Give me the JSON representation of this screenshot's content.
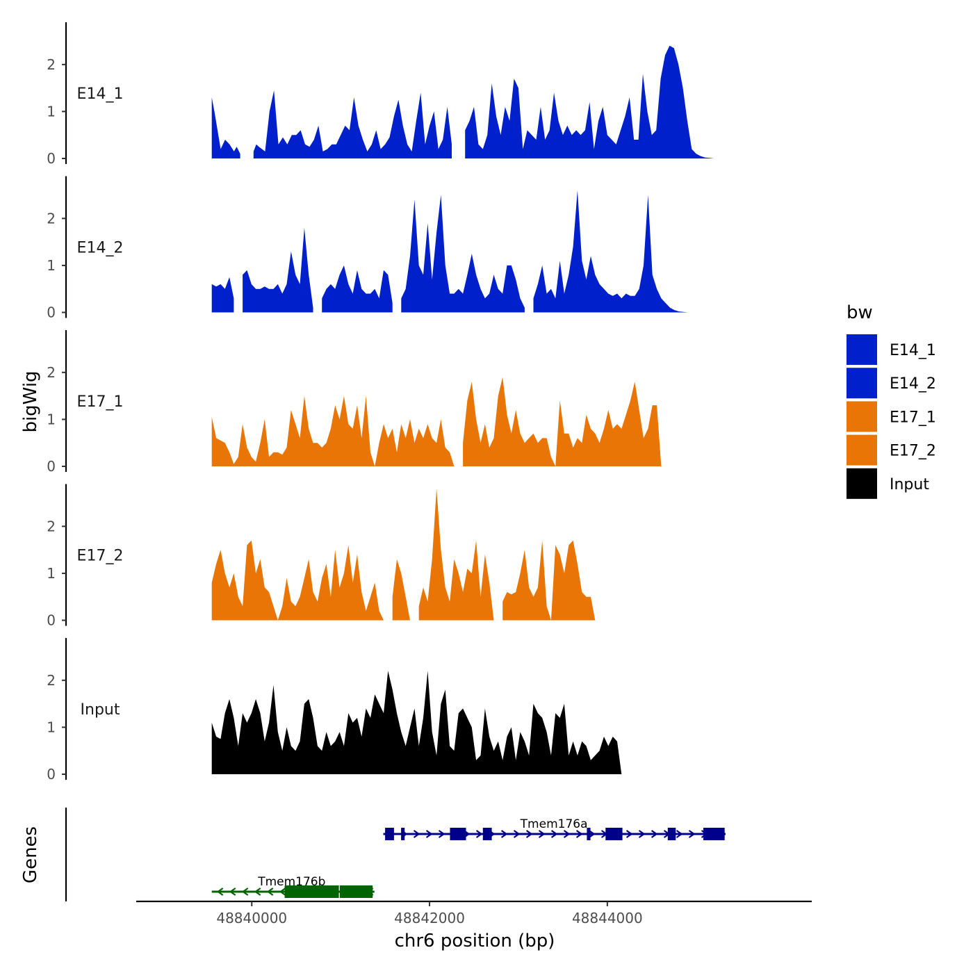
{
  "chart_data": {
    "type": "area",
    "ylabel": "bigWig",
    "xlabel": "chr6 position (bp)",
    "xlim": [
      48838700,
      48846300
    ],
    "x_ticks": [
      48840000,
      48842000,
      48844000
    ],
    "x_tick_labels": [
      "48840000",
      "48842000",
      "48844000"
    ],
    "ylim": [
      0,
      2.9
    ],
    "y_ticks": [
      0,
      1,
      2
    ],
    "y_tick_labels": [
      "0",
      "1",
      "2"
    ],
    "legend": {
      "title": "bw",
      "position": "right",
      "items": [
        {
          "label": "E14_1",
          "color": "#0020cc"
        },
        {
          "label": "E14_2",
          "color": "#0020cc"
        },
        {
          "label": "E17_1",
          "color": "#e87506"
        },
        {
          "label": "E17_2",
          "color": "#e87506"
        },
        {
          "label": "Input",
          "color": "#000000"
        }
      ]
    },
    "tracks": [
      {
        "name": "E14_1",
        "color": "#0020cc",
        "x": [
          48839550,
          48839580,
          48839650,
          48839700,
          48839750,
          48839800,
          48839830,
          48839870,
          48839920,
          48839970,
          48840020,
          48840050,
          48840080,
          48840150,
          48840200,
          48840250,
          48840300,
          48840350,
          48840400,
          48840450,
          48840500,
          48840550,
          48840600,
          48840650,
          48840700,
          48840750,
          48840800,
          48840850,
          48840900,
          48840950,
          48841000,
          48841050,
          48841100,
          48841150,
          48841200,
          48841250,
          48841300,
          48841350,
          48841400,
          48841450,
          48841500,
          48841550,
          48841600,
          48841650,
          48841700,
          48841750,
          48841800,
          48841850,
          48841900,
          48841950,
          48842000,
          48842050,
          48842100,
          48842150,
          48842200,
          48842250,
          48842300,
          48842350,
          48842400,
          48842450,
          48842500,
          48842550,
          48842600,
          48842650,
          48842700,
          48842750,
          48842800,
          48842850,
          48842900,
          48842950,
          48843000,
          48843050,
          48843100,
          48843150,
          48843200,
          48843250,
          48843300,
          48843350,
          48843400,
          48843450,
          48843500,
          48843550,
          48843600,
          48843650,
          48843700,
          48843750,
          48843800,
          48843850,
          48843900,
          48843950,
          48844000,
          48844050,
          48844100,
          48844150,
          48844200,
          48844250,
          48844300,
          48844350,
          48844400,
          48844450,
          48844500,
          48844550,
          48844600,
          48844650,
          48844700,
          48844750,
          48844800,
          48844850,
          48844900,
          48844950,
          48845000,
          48845050,
          48845100,
          48845150,
          48845200,
          48845250,
          48845300,
          48845350
        ],
        "y": [
          1.3,
          1.0,
          0.2,
          0.4,
          0.3,
          0.15,
          0.25,
          0.1,
          null,
          null,
          0.15,
          0.3,
          0.25,
          0.15,
          1.0,
          1.45,
          0.3,
          0.45,
          0.3,
          0.5,
          0.5,
          0.6,
          0.3,
          0.25,
          0.4,
          0.7,
          0.15,
          0.2,
          0.3,
          0.3,
          0.5,
          0.7,
          0.6,
          1.3,
          0.7,
          0.4,
          0.15,
          0.3,
          0.6,
          0.2,
          0.3,
          0.45,
          0.9,
          1.25,
          0.7,
          0.3,
          0.15,
          0.8,
          1.4,
          0.3,
          0.7,
          1.0,
          0.2,
          0.4,
          1.1,
          0.3,
          null,
          null,
          0.6,
          0.8,
          1.1,
          0.3,
          0.2,
          0.5,
          1.6,
          0.9,
          0.5,
          1.1,
          0.8,
          1.7,
          1.5,
          0.2,
          0.6,
          0.5,
          0.4,
          1.1,
          0.4,
          0.6,
          1.4,
          0.8,
          0.5,
          0.7,
          0.5,
          0.6,
          0.5,
          0.6,
          1.2,
          0.2,
          0.8,
          1.1,
          0.5,
          0.4,
          0.3,
          0.6,
          0.9,
          1.3,
          0.4,
          0.4,
          1.8,
          1.0,
          0.5,
          0.6,
          1.7,
          2.2,
          2.4,
          2.35,
          2.0,
          1.5,
          0.8,
          0.2,
          0.1,
          0.05,
          0.02,
          0.01,
          0.0,
          0.0,
          0.0,
          0.0
        ],
        "x_end": 48845350
      },
      {
        "name": "E14_2",
        "color": "#0020cc",
        "x_end": 48845350
      },
      {
        "name": "E17_1",
        "color": "#e87506",
        "x_end": 48845350
      },
      {
        "name": "E17_2",
        "color": "#e87506",
        "x_end": 48845350
      },
      {
        "name": "Input",
        "color": "#000000",
        "x_end": 48845350
      }
    ],
    "genes_track": {
      "label": "Genes",
      "genes": [
        {
          "name": "Tmem176a",
          "strand": "+",
          "start": 48841480,
          "end": 48845330,
          "color": "#00008b",
          "exons": [
            [
              48841500,
              48841600
            ],
            [
              48841680,
              48841720
            ],
            [
              48842230,
              48842410
            ],
            [
              48842600,
              48842700
            ],
            [
              48843770,
              48843810
            ],
            [
              48843980,
              48844170
            ],
            [
              48844680,
              48844770
            ],
            [
              48845080,
              48845320
            ]
          ]
        },
        {
          "name": "Tmem176b",
          "strand": "-",
          "start": 48839550,
          "end": 48841380,
          "color": "#006400",
          "exons": [
            [
              48840370,
              48840980
            ],
            [
              48840990,
              48841360
            ]
          ]
        }
      ]
    }
  }
}
